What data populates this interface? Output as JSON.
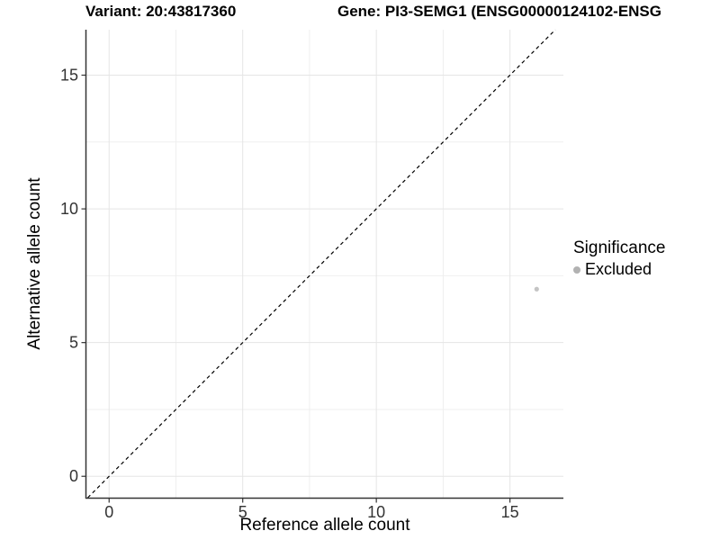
{
  "titles": {
    "variant": "Variant: 20:43817360",
    "gene": "Gene: PI3-SEMG1 (ENSG00000124102-ENSG"
  },
  "chart_data": {
    "type": "scatter",
    "title_left": "Variant: 20:43817360",
    "title_right": "Gene: PI3-SEMG1 (ENSG00000124102-ENSG",
    "xlabel": "Reference allele count",
    "ylabel": "Alternative allele count",
    "xlim": [
      -0.85,
      17.0
    ],
    "ylim": [
      -0.8,
      16.7
    ],
    "xticks": [
      0,
      5,
      10,
      15
    ],
    "yticks": [
      0,
      5,
      10,
      15
    ],
    "xminor": [
      2.5,
      7.5,
      12.5
    ],
    "yminor": [
      2.5,
      7.5,
      12.5
    ],
    "grid": true,
    "legend_position": "right",
    "identity_line": {
      "style": "dashed",
      "color": "#000000",
      "from": -0.8,
      "to": 16.7
    },
    "series": [
      {
        "name": "Excluded",
        "color": "#c4c4c4",
        "points": [
          {
            "x": 16,
            "y": 7
          }
        ]
      }
    ],
    "legend": {
      "title": "Significance",
      "items": [
        {
          "label": "Excluded",
          "color": "#b2b2b2"
        }
      ]
    },
    "colors": {
      "axis": "#333333",
      "tick_label": "#333333",
      "grid_major": "#e5e5e5",
      "grid_minor": "#efefef",
      "background": "#ffffff"
    }
  }
}
